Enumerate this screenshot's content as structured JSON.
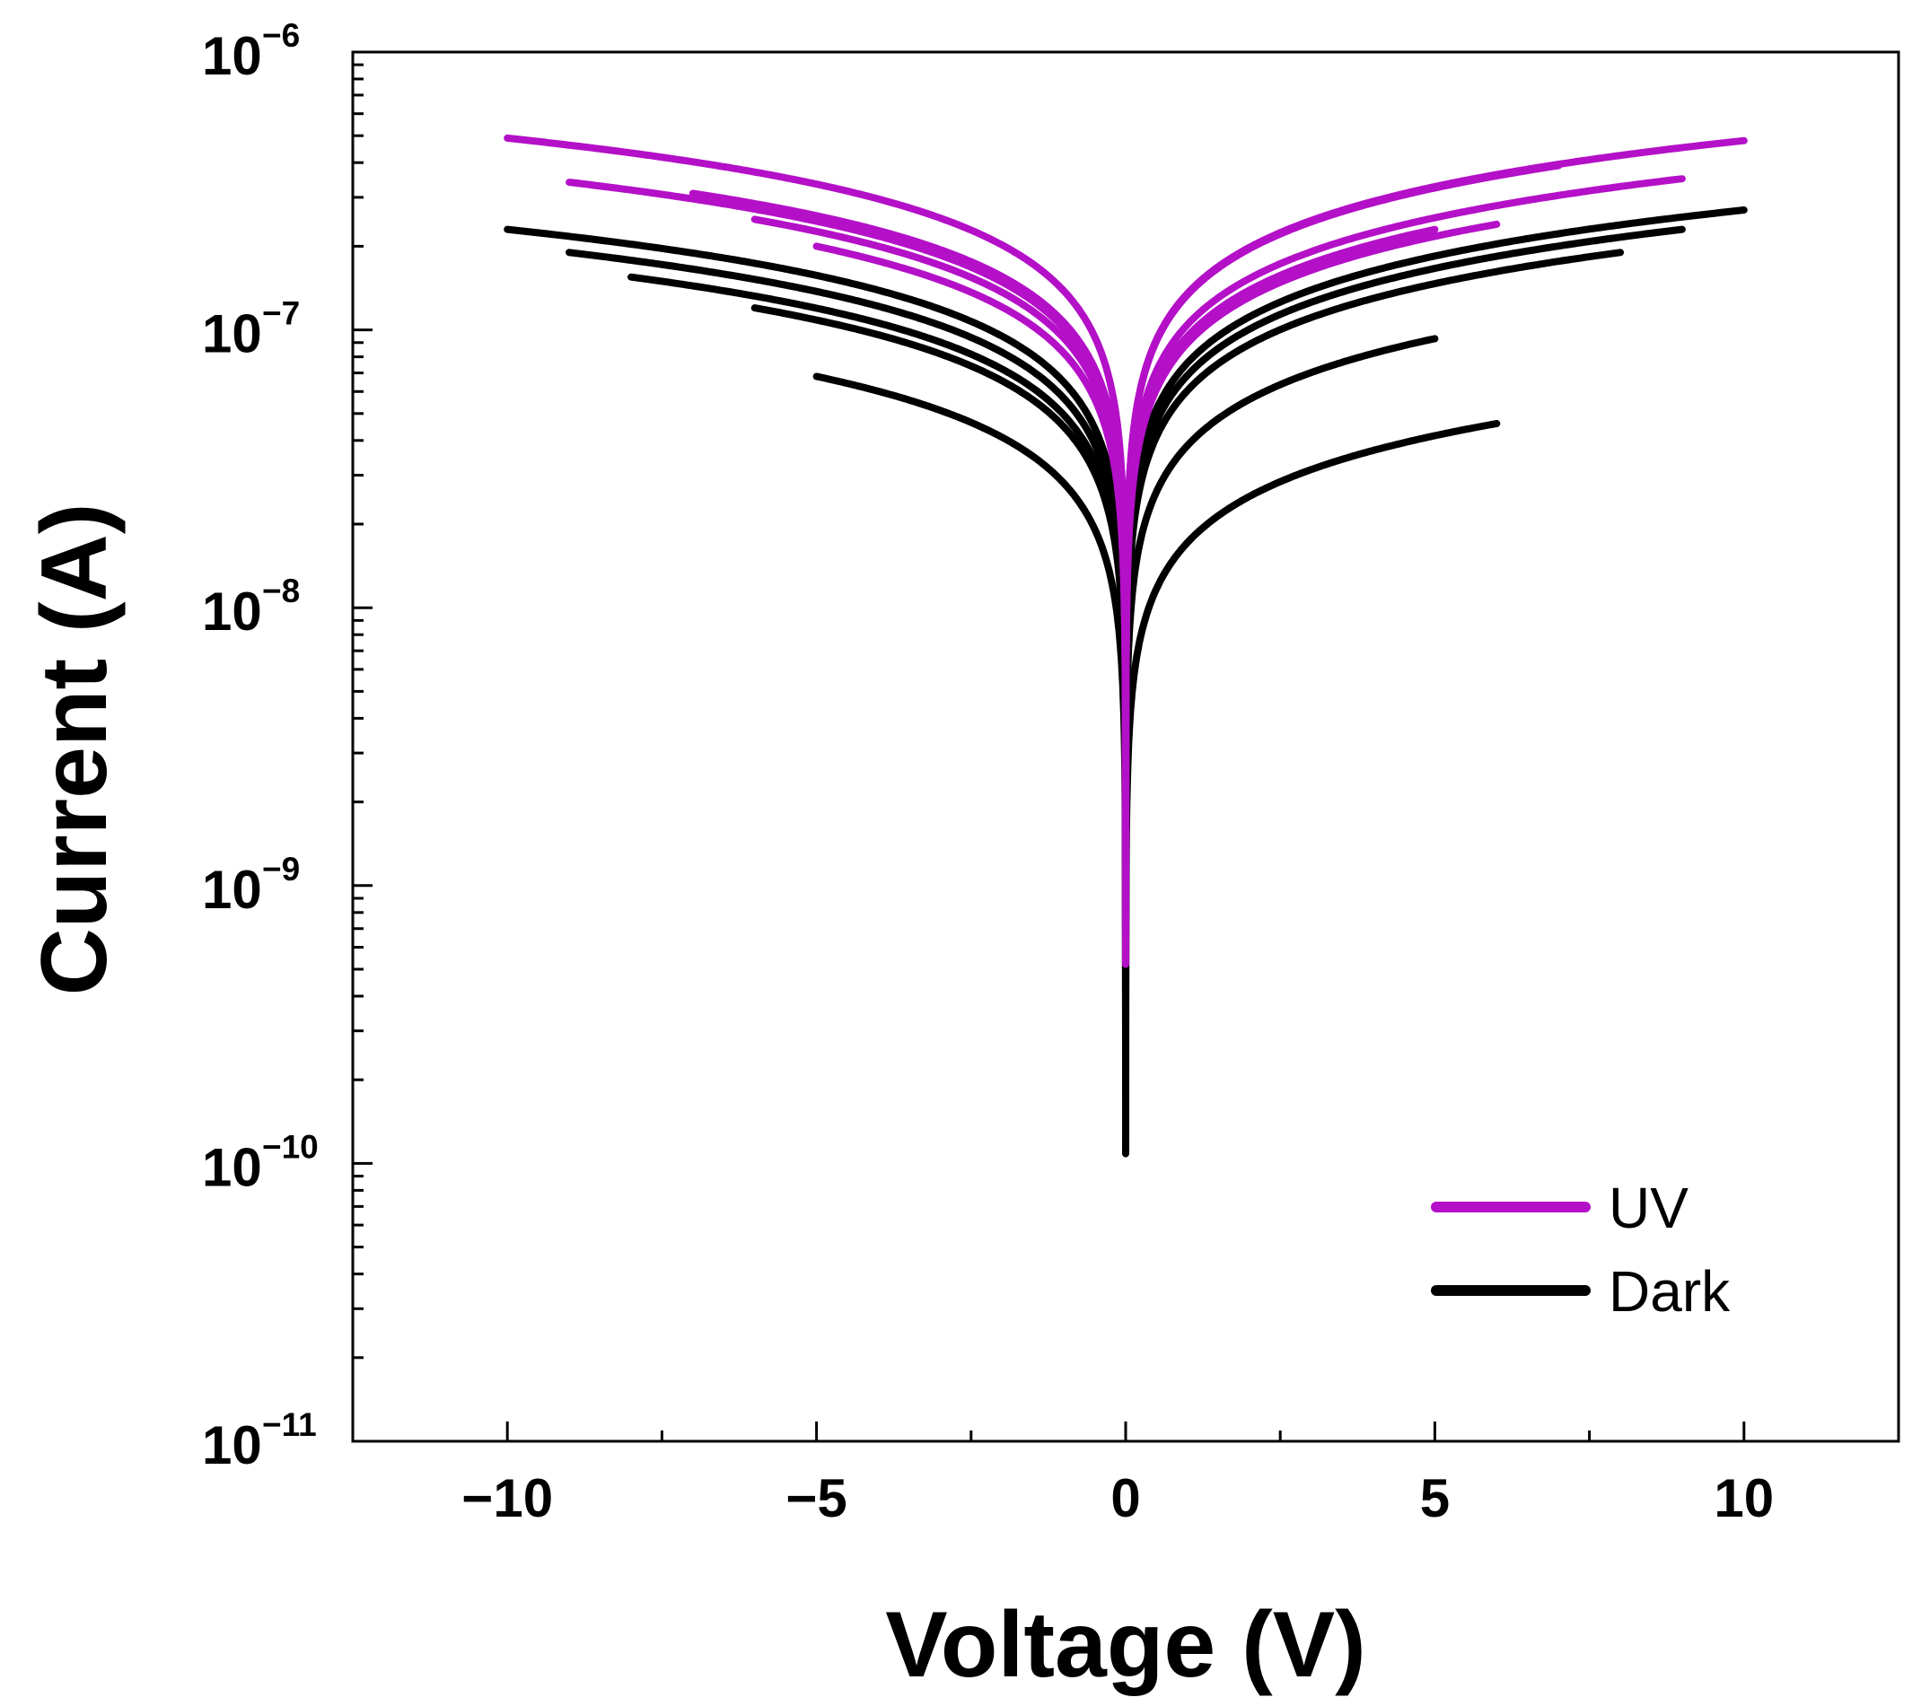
{
  "chart_data": {
    "type": "line",
    "title": "",
    "xlabel": "Voltage (V)",
    "ylabel": "Current (A)",
    "xlim": [
      -12.5,
      12.5
    ],
    "ylim": [
      1e-11,
      1e-06
    ],
    "yscale": "log",
    "grid": false,
    "legend_position": "bottom-right",
    "x_ticks": [
      {
        "value": -10,
        "label": "−10"
      },
      {
        "value": -5,
        "label": "−5"
      },
      {
        "value": 0,
        "label": "0"
      },
      {
        "value": 5,
        "label": "5"
      },
      {
        "value": 10,
        "label": "10"
      }
    ],
    "y_ticks": [
      {
        "value": 1e-06,
        "base": "10",
        "exp": "−6"
      },
      {
        "value": 1e-07,
        "base": "10",
        "exp": "−7"
      },
      {
        "value": 1e-08,
        "base": "10",
        "exp": "−8"
      },
      {
        "value": 1e-09,
        "base": "10",
        "exp": "−9"
      },
      {
        "value": 1e-10,
        "base": "10",
        "exp": "−10"
      },
      {
        "value": 1e-11,
        "base": "10",
        "exp": "−11"
      }
    ],
    "series": [
      {
        "name": "UV",
        "color": "#b410c8",
        "sweeps": [
          {
            "vmax": 10,
            "i_pos_end": 4.8e-07,
            "i_neg_end": 4.9e-07
          },
          {
            "vmax": 9,
            "i_pos_end": 3.5e-07,
            "i_neg_end": 3.4e-07
          },
          {
            "vmax": 7,
            "i_pos_end": 3.9e-07,
            "i_neg_end": 3.1e-07
          },
          {
            "vmax": 6,
            "i_pos_end": 2.4e-07,
            "i_neg_end": 2.5e-07
          },
          {
            "vmax": 5,
            "i_pos_end": 2.3e-07,
            "i_neg_end": 2e-07
          }
        ]
      },
      {
        "name": "Dark",
        "color": "#000000",
        "sweeps": [
          {
            "vmax": 10,
            "i_pos_end": 2.7e-07,
            "i_neg_end": 2.3e-07
          },
          {
            "vmax": 9,
            "i_pos_end": 2.3e-07,
            "i_neg_end": 1.9e-07
          },
          {
            "vmax": 8,
            "i_pos_end": 1.9e-07,
            "i_neg_end": 1.55e-07
          },
          {
            "vmax": 6,
            "i_pos_end": 4.6e-08,
            "i_neg_end": 1.2e-07
          },
          {
            "vmax": 5,
            "i_pos_end": 9.3e-08,
            "i_neg_end": 6.8e-08
          }
        ]
      }
    ]
  }
}
